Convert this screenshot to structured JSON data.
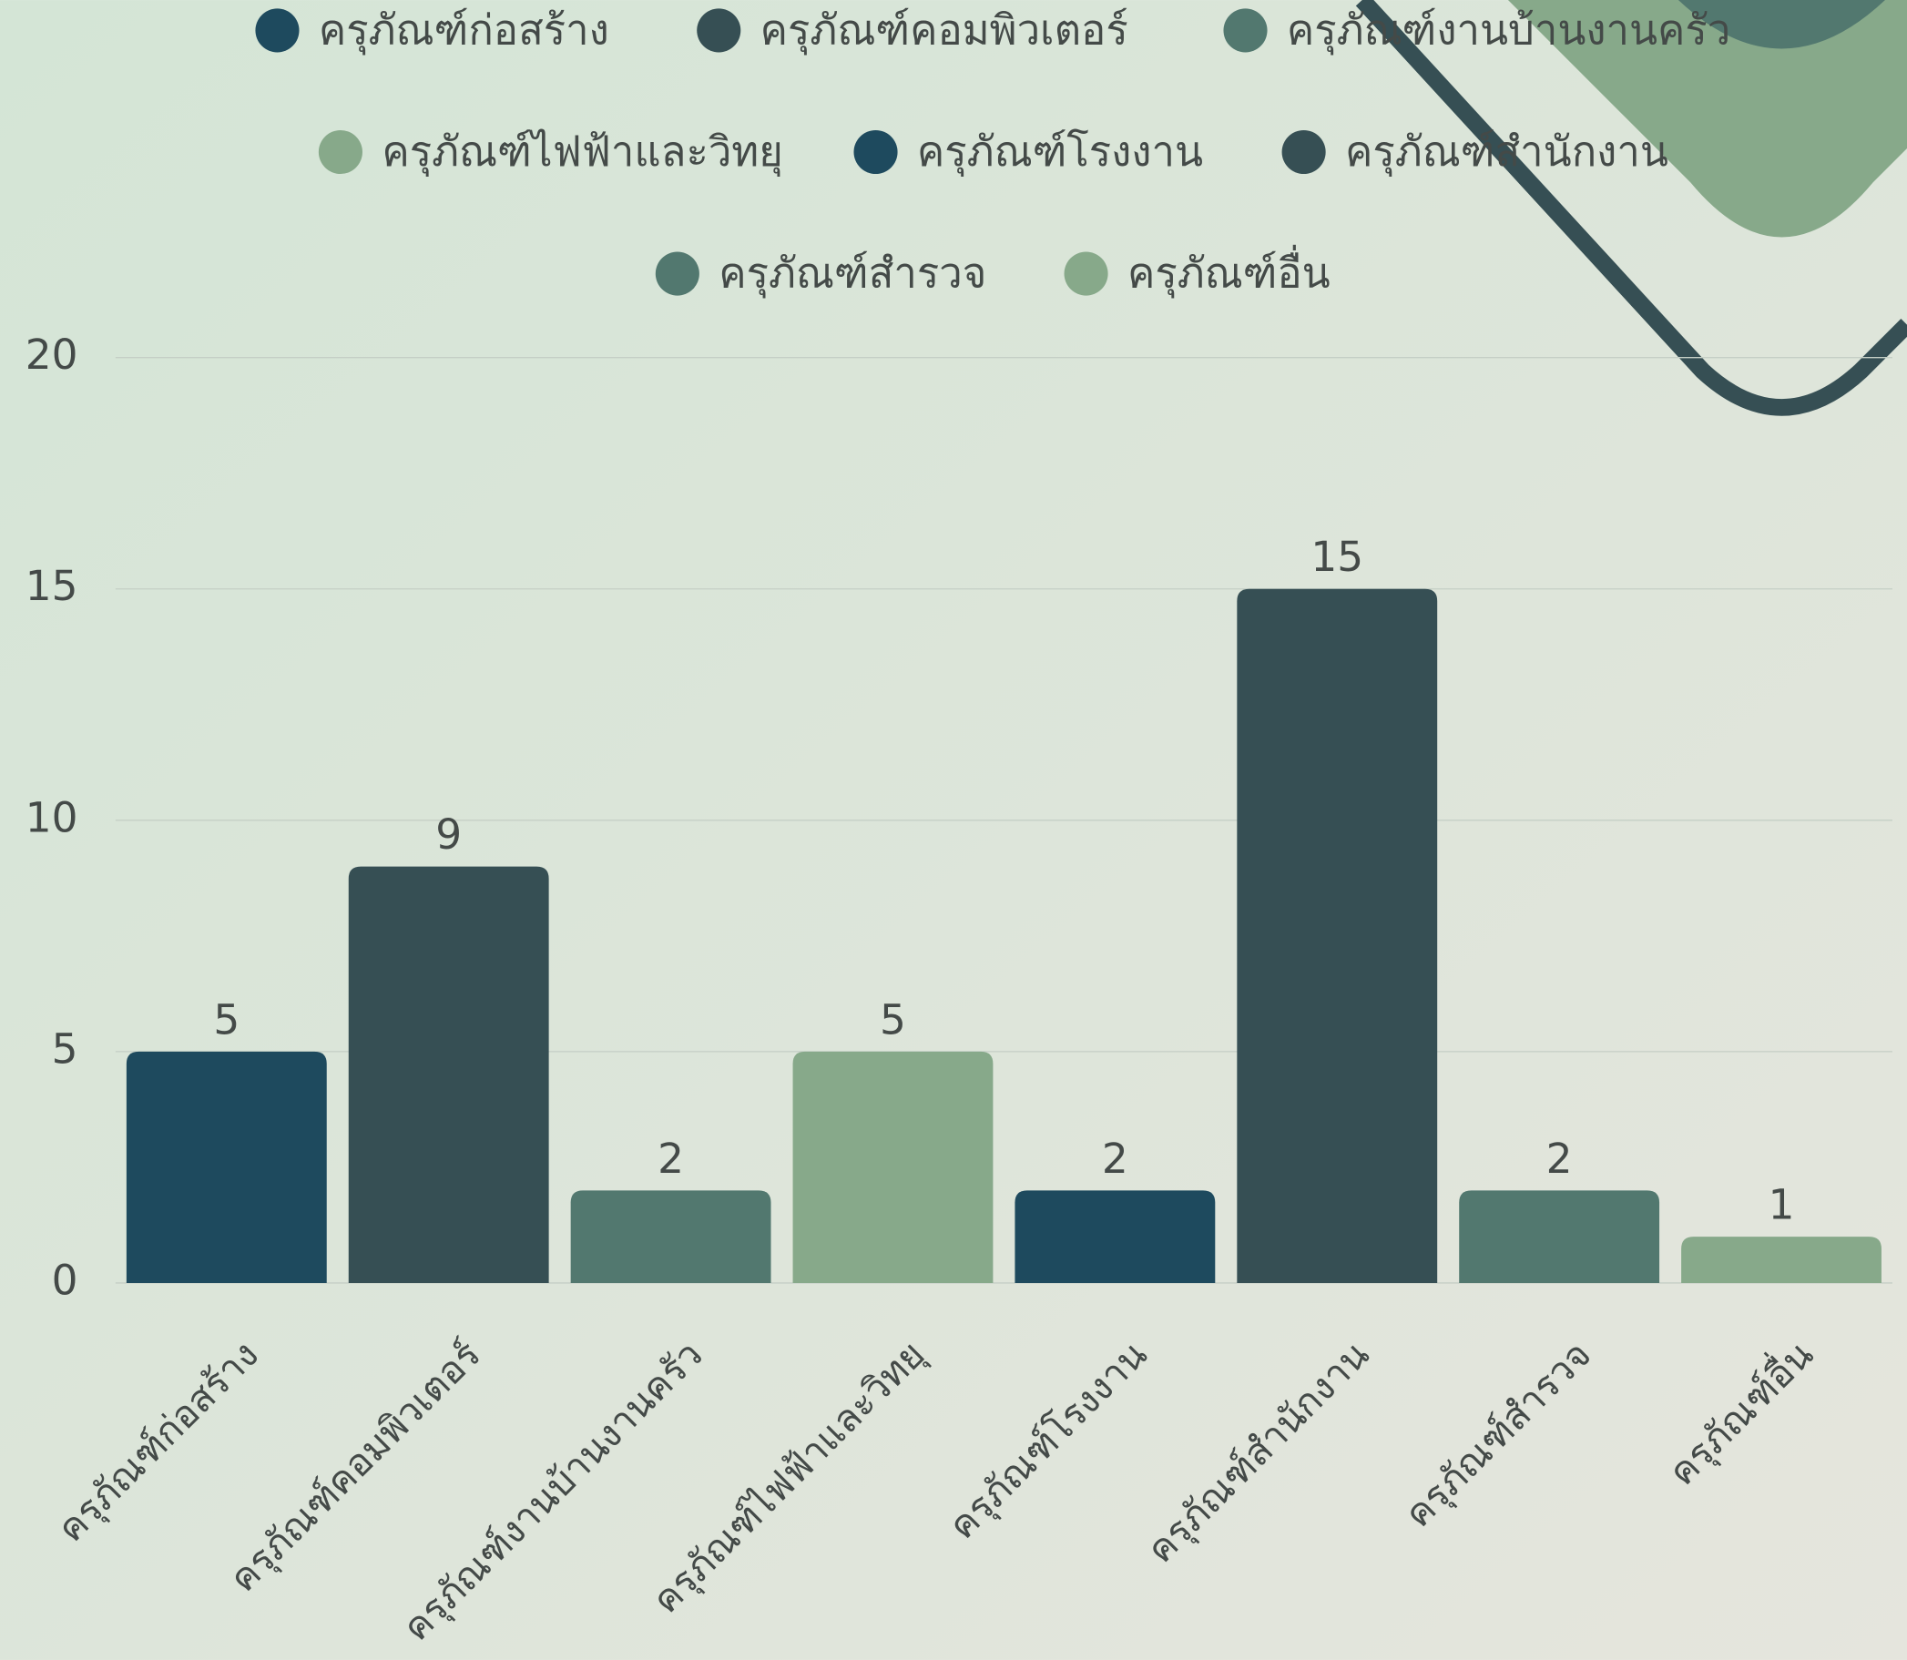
{
  "chart_data": {
    "type": "bar",
    "categories": [
      "ครุภัณฑ์ก่อสร้าง",
      "ครุภัณฑ์คอมพิวเตอร์",
      "ครุภัณฑ์งานบ้านงานครัว",
      "ครุภัณฑ์ไฟฟ้าและวิทยุ",
      "ครุภัณฑ์โรงงาน",
      "ครุภัณฑ์สำนักงาน",
      "ครุภัณฑ์สำรวจ",
      "ครุภัณฑ์อื่น"
    ],
    "values": [
      5,
      9,
      2,
      5,
      2,
      15,
      2,
      1
    ],
    "colors": [
      "#1e4a5e",
      "#364f54",
      "#52786f",
      "#87a98a",
      "#1e4a5e",
      "#364f54",
      "#52786f",
      "#87a98a"
    ],
    "ylim": [
      0,
      20
    ],
    "yticks": [
      0,
      5,
      10,
      15,
      20
    ],
    "grid": true,
    "legend": "top"
  }
}
